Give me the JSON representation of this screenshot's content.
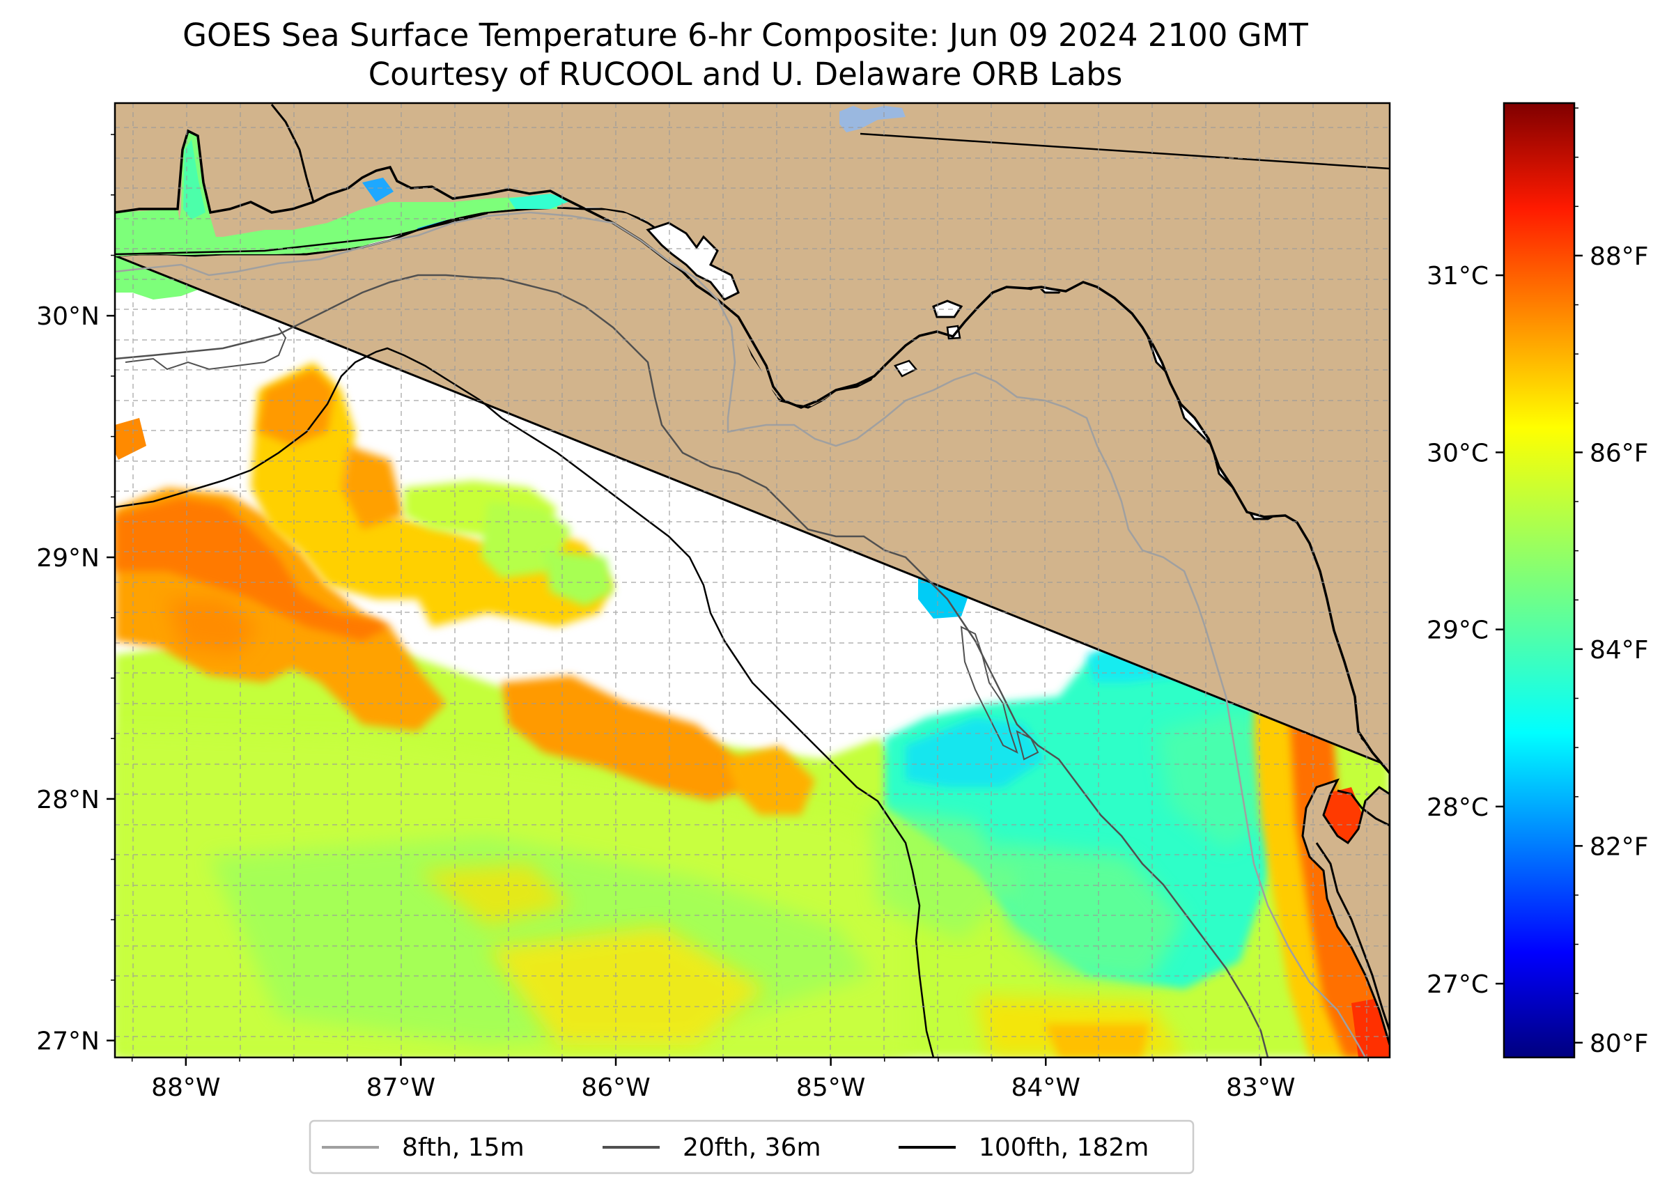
{
  "title": {
    "line1": "GOES Sea Surface Temperature 6-hr Composite: Jun 09 2024 2100 GMT",
    "line2": "Courtesy of RUCOOL and U. Delaware ORB Labs"
  },
  "map": {
    "lon_range": [
      -88.33,
      -82.4
    ],
    "lat_range": [
      26.93,
      30.88
    ],
    "lon_ticks": [
      {
        "value": -88,
        "label": "88°W"
      },
      {
        "value": -87,
        "label": "87°W"
      },
      {
        "value": -86,
        "label": "86°W"
      },
      {
        "value": -85,
        "label": "85°W"
      },
      {
        "value": -84,
        "label": "84°W"
      },
      {
        "value": -83,
        "label": "83°W"
      }
    ],
    "lat_ticks": [
      {
        "value": 27,
        "label": "27°N"
      },
      {
        "value": 28,
        "label": "28°N"
      },
      {
        "value": 29,
        "label": "29°N"
      },
      {
        "value": 30,
        "label": "30°N"
      }
    ],
    "grid": true,
    "land_color": "#d2b48c",
    "no_data_color": "#ffffff"
  },
  "colorbar": {
    "celsius_ticks": [
      {
        "value": 27,
        "label": "27°C"
      },
      {
        "value": 28,
        "label": "28°C"
      },
      {
        "value": 29,
        "label": "29°C"
      },
      {
        "value": 30,
        "label": "30°C"
      },
      {
        "value": 31,
        "label": "31°C"
      }
    ],
    "fahrenheit_ticks": [
      {
        "value": 80,
        "label": "80°F"
      },
      {
        "value": 82,
        "label": "82°F"
      },
      {
        "value": 84,
        "label": "84°F"
      },
      {
        "value": 86,
        "label": "86°F"
      },
      {
        "value": 88,
        "label": "88°F"
      }
    ],
    "colormap": "jet"
  },
  "legend": {
    "items": [
      {
        "label": "8fth, 15m",
        "color": "#a0a0a0"
      },
      {
        "label": "20fth, 36m",
        "color": "#505050"
      },
      {
        "label": "100fth, 182m",
        "color": "#000000"
      }
    ]
  }
}
